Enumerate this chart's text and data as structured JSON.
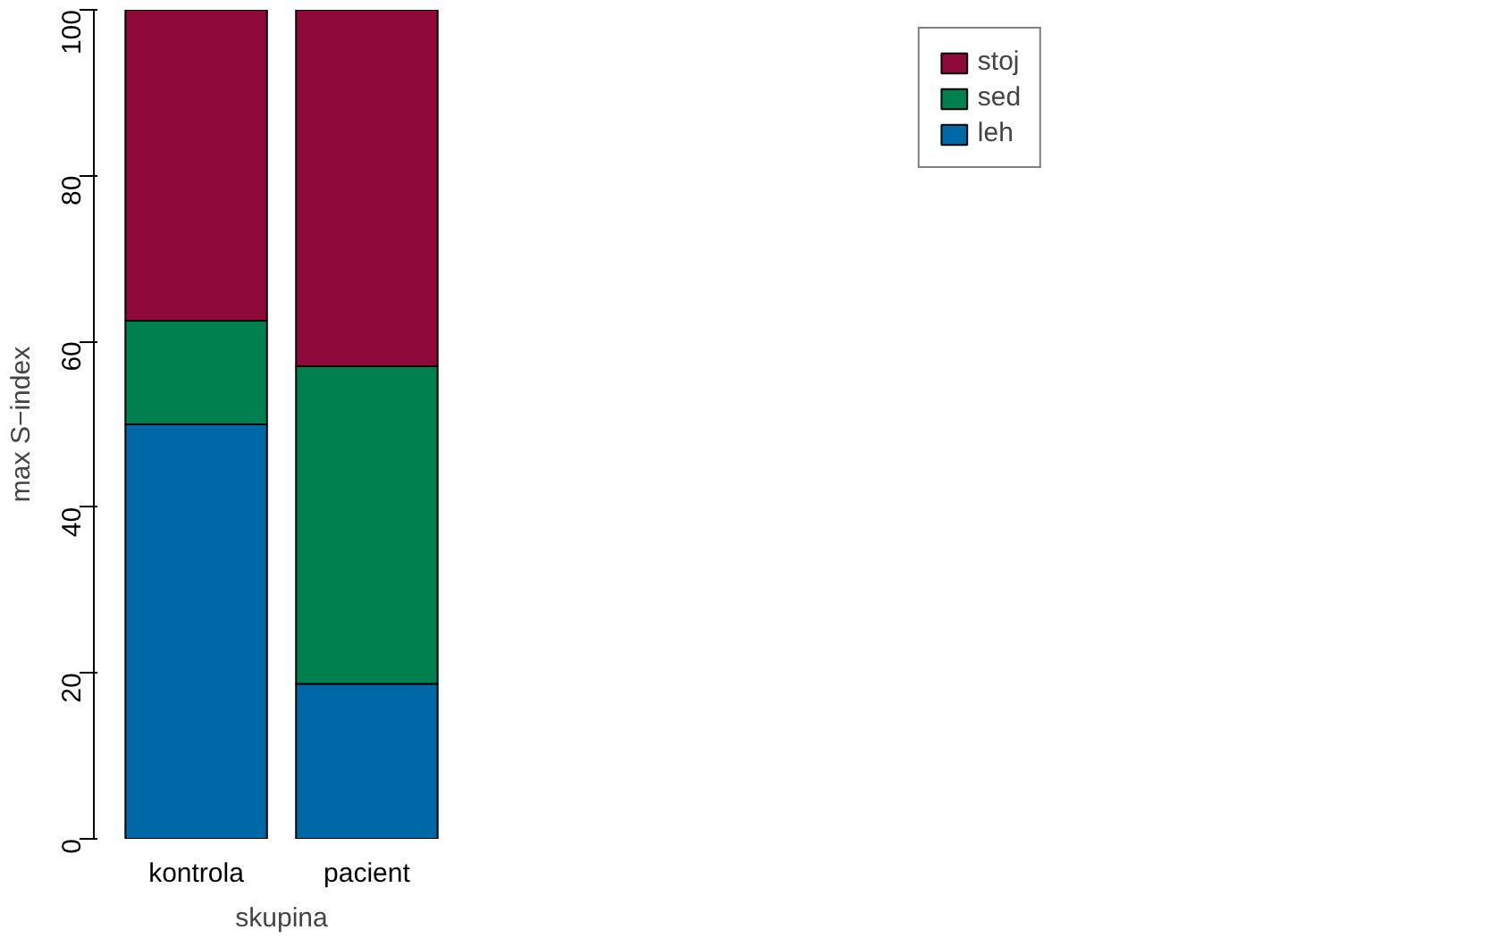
{
  "chart_data": {
    "type": "bar",
    "stacked": true,
    "xlabel": "skupina",
    "ylabel": "max S−index",
    "categories": [
      "kontrola",
      "pacient"
    ],
    "series": [
      {
        "name": "leh",
        "color": "#0068a6",
        "values": [
          50,
          18.7
        ]
      },
      {
        "name": "sed",
        "color": "#007f4f",
        "values": [
          12.5,
          38.3
        ]
      },
      {
        "name": "stoj",
        "color": "#8f0a3a",
        "values": [
          37.5,
          43
        ]
      }
    ],
    "ylim": [
      0,
      100
    ],
    "yticks": [
      0,
      20,
      40,
      60,
      80,
      100
    ],
    "grid": false,
    "legend": "right"
  }
}
